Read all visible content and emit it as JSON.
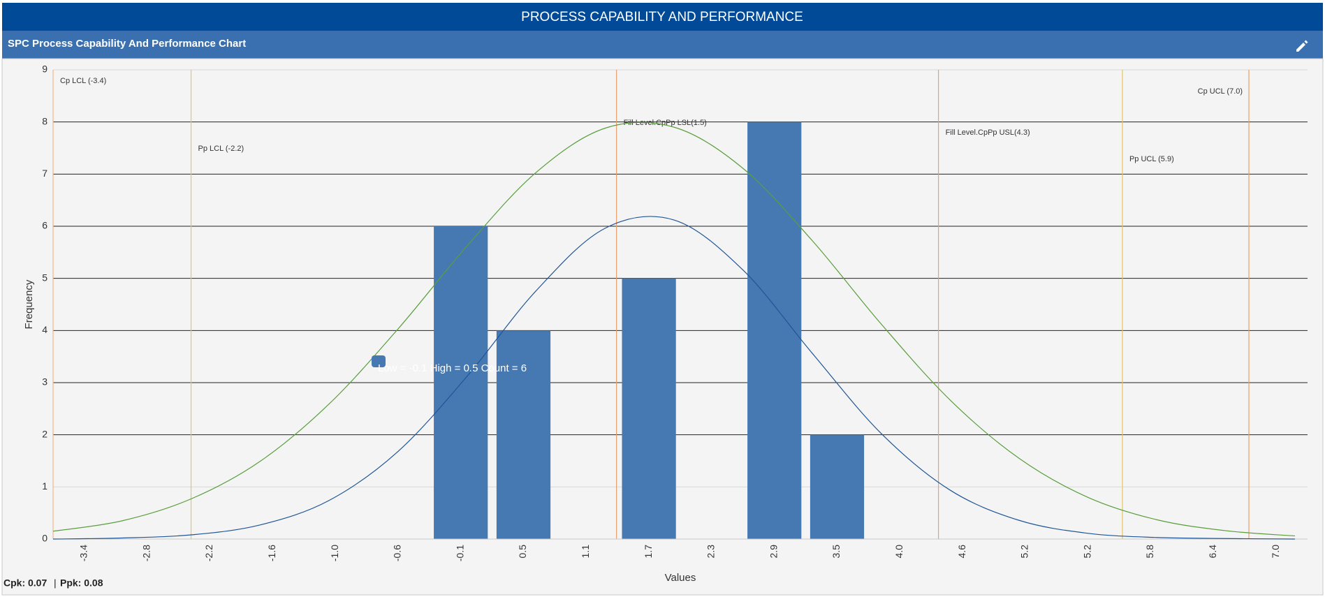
{
  "header": {
    "title": "PROCESS CAPABILITY AND PERFORMANCE"
  },
  "panel": {
    "title": "SPC Process Capability And Performance Chart"
  },
  "chart_data": {
    "type": "bar",
    "x_label": "Values",
    "y_label": "Frequency",
    "categories": [
      "-3.4",
      "-2.8",
      "-2.2",
      "-1.6",
      "-1.0",
      "-0.6",
      "-0.1",
      "0.5",
      "1.1",
      "1.7",
      "2.3",
      "2.9",
      "3.5",
      "4.0",
      "4.6",
      "5.2",
      "5.2",
      "5.8",
      "6.4",
      "7.0"
    ],
    "values": [
      0,
      0,
      0,
      0,
      0,
      0,
      6,
      4,
      0,
      5,
      0,
      8,
      2,
      0,
      0,
      0,
      0,
      0,
      0,
      0
    ],
    "color": "#4679b2",
    "ylim": [
      0,
      9
    ],
    "yticks": [
      0,
      1,
      2,
      3,
      4,
      5,
      6,
      7,
      8,
      9
    ],
    "grid": true,
    "xlim": [
      -3.4,
      7.51
    ],
    "spec_lines": [
      {
        "label": "Cp LCL (-3.4)",
        "value": -3.4,
        "color": "#f0b890"
      },
      {
        "label": "Pp LCL (-2.2)",
        "value": -2.2,
        "color": "#e6c75a"
      },
      {
        "label": "Fill Level.CpPp LSL(1.5)",
        "value": 1.5,
        "color": "#e8a06e"
      },
      {
        "label": "Fill Level.CpPp USL(4.3)",
        "value": 4.3,
        "color": "#e8a06e"
      },
      {
        "label": "Pp UCL (5.9)",
        "value": 5.9,
        "color": "#e6c75a"
      },
      {
        "label": "Cp UCL (7.0)",
        "value": 7.0,
        "color": "#e8a06e"
      }
    ],
    "curves": [
      {
        "color": "#5a9e3c",
        "x": [
          -3.4,
          -2.8,
          -2.2,
          -1.6,
          -1.0,
          -0.4,
          0.2,
          0.8,
          1.4,
          2.0,
          2.6,
          3.2,
          3.8,
          4.4,
          5.0,
          5.6,
          6.2,
          6.8,
          7.4
        ],
        "values": [
          0.15,
          0.35,
          0.77,
          1.49,
          2.59,
          4.03,
          5.62,
          7.03,
          7.88,
          7.9,
          7.11,
          5.73,
          4.13,
          2.67,
          1.55,
          0.8,
          0.37,
          0.16,
          0.06
        ]
      },
      {
        "color": "#1f5596",
        "x": [
          -3.4,
          -2.8,
          -2.2,
          -1.6,
          -1.0,
          -0.4,
          0.2,
          0.8,
          1.4,
          2.0,
          2.6,
          3.2,
          3.8,
          4.4,
          5.0,
          5.6,
          6.2,
          6.8,
          7.4
        ],
        "values": [
          0,
          0.02,
          0.08,
          0.27,
          0.74,
          1.68,
          3.12,
          4.76,
          5.96,
          6.12,
          5.16,
          3.57,
          2.03,
          0.94,
          0.36,
          0.11,
          0.03,
          0.01,
          0
        ]
      }
    ],
    "tooltip": "Low = -0.1 High = 0.5 Count = 6"
  },
  "footer": {
    "cpk": "Cpk: 0.07",
    "separator": "|",
    "ppk": "Ppk: 0.08"
  }
}
